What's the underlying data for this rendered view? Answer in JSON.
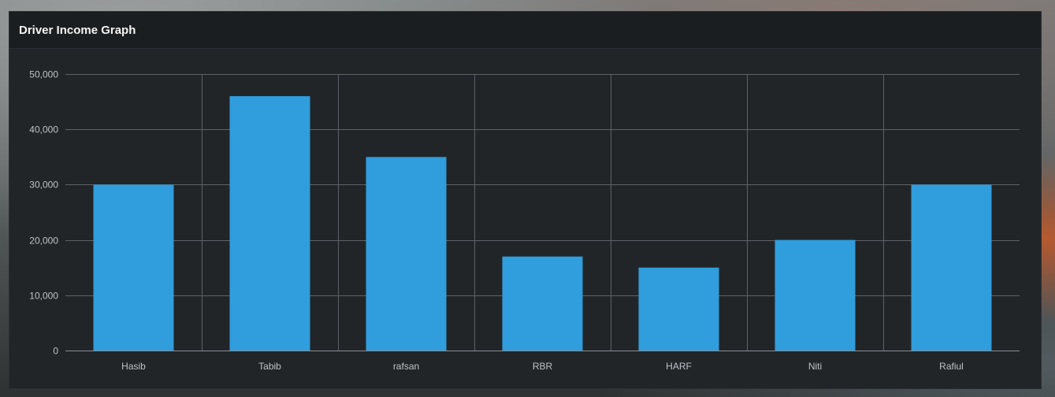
{
  "card": {
    "title": "Driver Income Graph"
  },
  "chart_data": {
    "type": "bar",
    "categories": [
      "Hasib",
      "Tabib",
      "rafsan",
      "RBR",
      "HARF",
      "Niti",
      "Rafiul"
    ],
    "values": [
      30000,
      46000,
      35000,
      17000,
      15000,
      20000,
      30000
    ],
    "ylim": [
      0,
      50000
    ],
    "yticks": [
      0,
      10000,
      20000,
      30000,
      40000,
      50000
    ],
    "ytick_labels": [
      "0",
      "10,000",
      "20,000",
      "30,000",
      "40,000",
      "50,000"
    ],
    "bar_color": "#309ddd",
    "grid_color": "#5d6266",
    "grid": true
  }
}
